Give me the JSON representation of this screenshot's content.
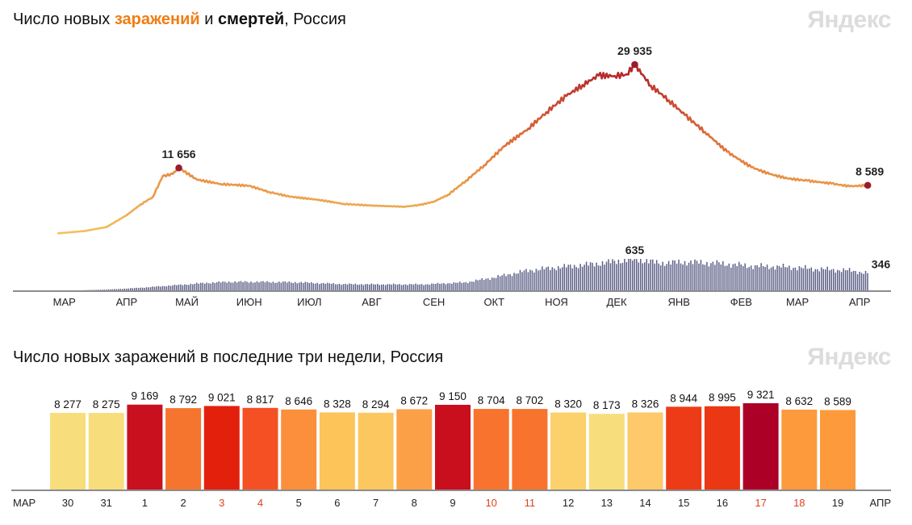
{
  "brand": "Яндекс",
  "chart1_title": {
    "part1": "Число новых ",
    "cases": "заражений",
    "part2": " и ",
    "deaths": "смертей",
    "part3": ", Россия"
  },
  "chart2_title": "Число новых заражений в последние три недели, Россия",
  "colors": {
    "cases_low": "#f2c15d",
    "cases_mid": "#e3793a",
    "cases_high": "#b2202a",
    "deaths": "#5b5f86",
    "peak_marker": "#9c1b2a"
  },
  "chart_data": [
    {
      "type": "line",
      "title": "Число новых заражений и смертей, Россия",
      "x_tick_labels": [
        "МАР",
        "АПР",
        "МАЙ",
        "ИЮН",
        "ИЮЛ",
        "АВГ",
        "СЕН",
        "ОКТ",
        "НОЯ",
        "ДЕК",
        "ЯНВ",
        "ФЕВ",
        "МАР",
        "АПР"
      ],
      "series": [
        {
          "name": "заражений",
          "dates": [
            "2020-03-12",
            "2020-03-25",
            "2020-04-05",
            "2020-04-15",
            "2020-04-22",
            "2020-04-28",
            "2020-05-03",
            "2020-05-08",
            "2020-05-11",
            "2020-05-20",
            "2020-06-01",
            "2020-06-15",
            "2020-06-25",
            "2020-07-05",
            "2020-07-20",
            "2020-08-01",
            "2020-08-15",
            "2020-08-31",
            "2020-09-08",
            "2020-09-15",
            "2020-09-22",
            "2020-10-01",
            "2020-10-10",
            "2020-10-20",
            "2020-11-01",
            "2020-11-10",
            "2020-11-20",
            "2020-11-28",
            "2020-12-06",
            "2020-12-14",
            "2020-12-20",
            "2020-12-24",
            "2021-01-01",
            "2021-01-10",
            "2021-01-18",
            "2021-01-28",
            "2021-02-08",
            "2021-02-20",
            "2021-03-01",
            "2021-03-10",
            "2021-03-20",
            "2021-04-01",
            "2021-04-10",
            "2021-04-19"
          ],
          "values": [
            100,
            500,
            1200,
            3300,
            5200,
            6500,
            10200,
            10600,
            11656,
            9600,
            8800,
            8500,
            7400,
            6600,
            6000,
            5300,
            5000,
            4800,
            5100,
            5700,
            6900,
            9400,
            12100,
            15500,
            18600,
            21500,
            24400,
            26300,
            28000,
            27900,
            28200,
            29935,
            26200,
            23600,
            21000,
            18000,
            14500,
            11800,
            10600,
            9800,
            9400,
            8900,
            8400,
            8589
          ],
          "annotations": [
            {
              "text": "11 656",
              "date": "2020-05-11"
            },
            {
              "text": "29 935",
              "date": "2020-12-24"
            },
            {
              "text": "8 589",
              "date": "2021-04-19"
            }
          ]
        },
        {
          "name": "смертей",
          "type": "bar",
          "dates": [
            "2020-03-25",
            "2020-04-05",
            "2020-04-15",
            "2020-04-25",
            "2020-05-05",
            "2020-05-15",
            "2020-05-25",
            "2020-06-05",
            "2020-06-20",
            "2020-07-10",
            "2020-08-01",
            "2020-08-20",
            "2020-09-10",
            "2020-10-01",
            "2020-10-15",
            "2020-11-01",
            "2020-11-15",
            "2020-12-01",
            "2020-12-10",
            "2020-12-24",
            "2021-01-05",
            "2021-01-20",
            "2021-02-05",
            "2021-02-20",
            "2021-03-10",
            "2021-03-25",
            "2021-04-10",
            "2021-04-19"
          ],
          "values": [
            3,
            15,
            35,
            60,
            90,
            120,
            150,
            170,
            170,
            160,
            125,
            120,
            120,
            160,
            260,
            400,
            460,
            520,
            560,
            635,
            550,
            570,
            540,
            490,
            470,
            430,
            400,
            346
          ],
          "annotations": [
            {
              "text": "635",
              "date": "2020-12-24"
            },
            {
              "text": "346",
              "date": "2021-04-19"
            }
          ]
        }
      ]
    },
    {
      "type": "bar",
      "title": "Число новых заражений в последние три недели, Россия",
      "x_start_label": "МАР",
      "x_end_label": "АПР",
      "categories": [
        "30",
        "31",
        "1",
        "2",
        "3",
        "4",
        "5",
        "6",
        "7",
        "8",
        "9",
        "10",
        "11",
        "12",
        "13",
        "14",
        "15",
        "16",
        "17",
        "18",
        "19"
      ],
      "holiday_categories": [
        "3",
        "4",
        "10",
        "11",
        "17",
        "18"
      ],
      "values": [
        8277,
        8275,
        9169,
        8792,
        9021,
        8817,
        8646,
        8328,
        8294,
        8672,
        9150,
        8704,
        8702,
        8320,
        8173,
        8326,
        8944,
        8995,
        9321,
        8632,
        8589
      ],
      "value_labels": [
        "8 277",
        "8 275",
        "9 169",
        "8 792",
        "9 021",
        "8 817",
        "8 646",
        "8 328",
        "8 294",
        "8 672",
        "9 150",
        "8 704",
        "8 702",
        "8 320",
        "8 173",
        "8 326",
        "8 944",
        "8 995",
        "9 321",
        "8 632",
        "8 589"
      ],
      "ylim": [
        0,
        9321
      ],
      "bar_colors": [
        "#f7dd7c",
        "#f7dd7c",
        "#c9101f",
        "#f5752e",
        "#e2200c",
        "#f55023",
        "#fb8f3c",
        "#fdc45a",
        "#fdc760",
        "#fca048",
        "#c90f1e",
        "#f8732e",
        "#f8732d",
        "#fcd06a",
        "#f7dd7c",
        "#fdc96a",
        "#ed3b17",
        "#eb3713",
        "#ac0026",
        "#fc9a3c",
        "#fc9a3c"
      ]
    }
  ]
}
